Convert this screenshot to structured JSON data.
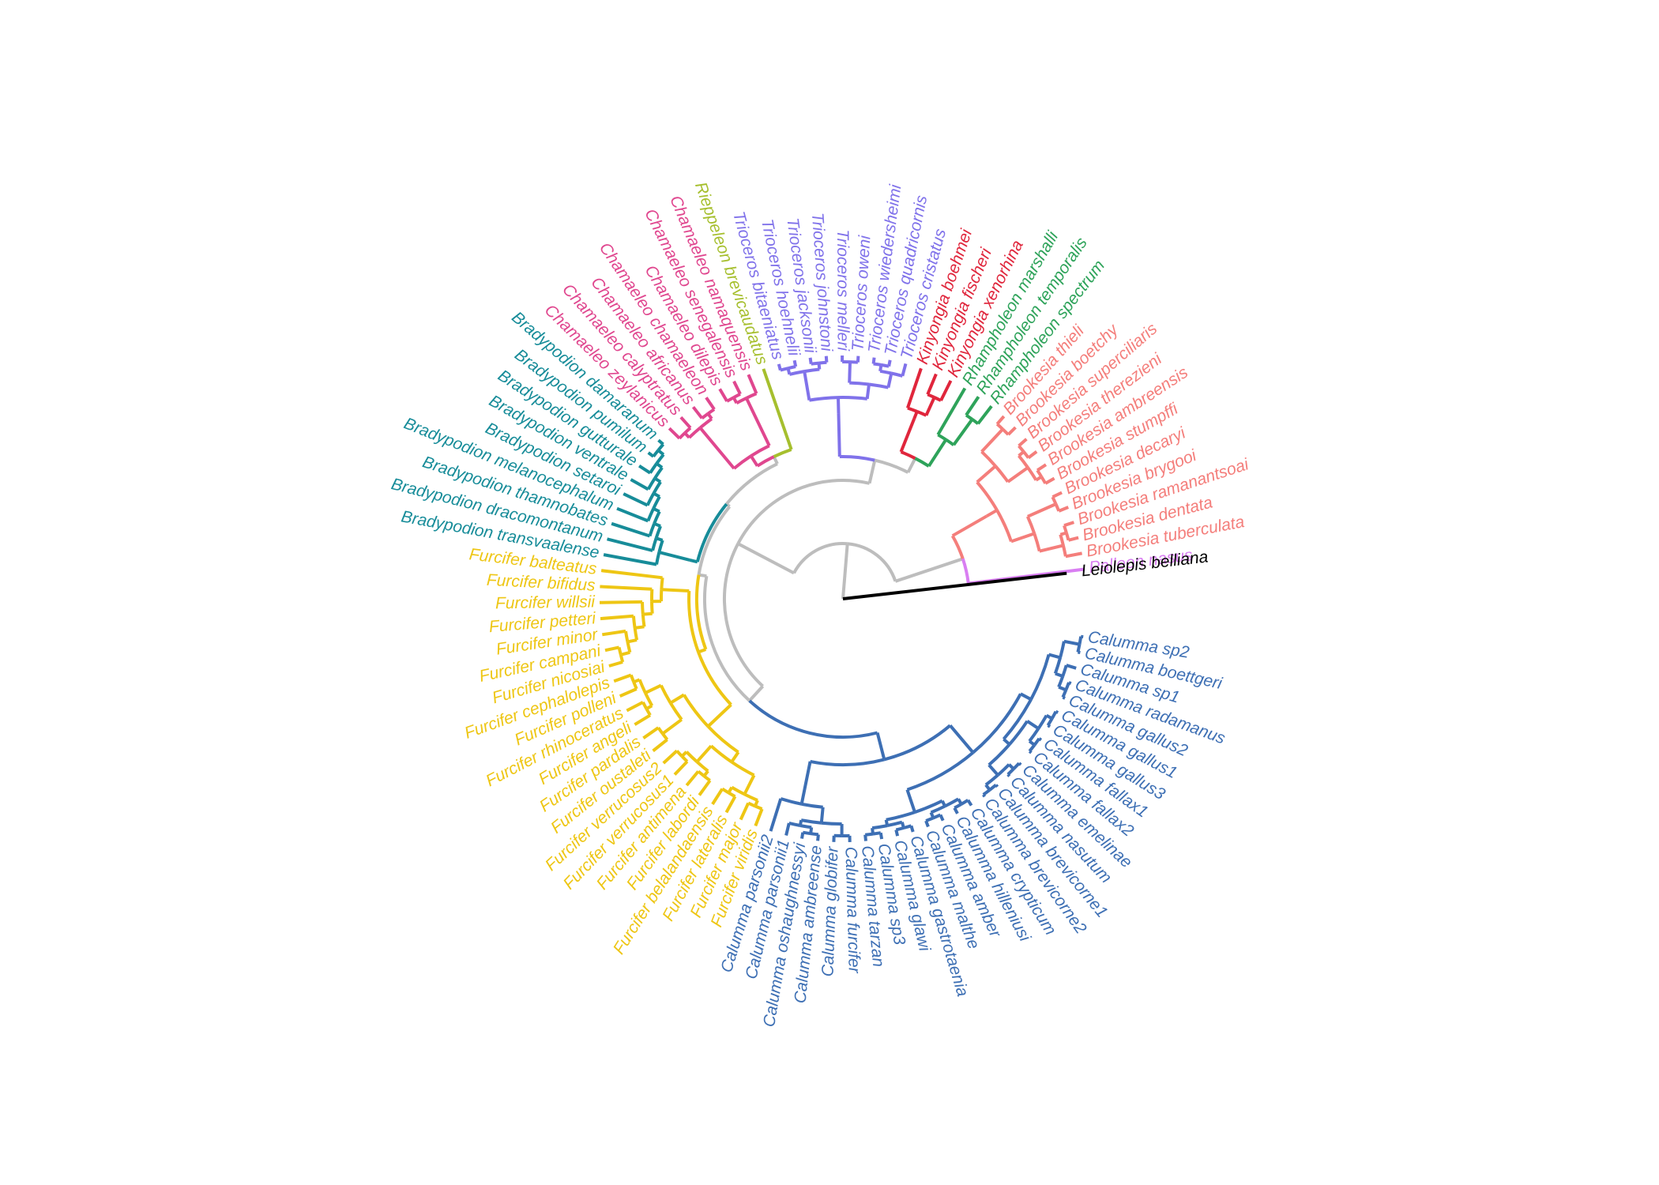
{
  "outgroup": {
    "label": "Leiolepis belliana",
    "color": "#000000"
  },
  "backbone_color": "#bdbdbd",
  "clades": [
    {
      "name": "Palleon",
      "color": "#d97ef2",
      "taxa": [
        "Palleon nasus"
      ]
    },
    {
      "name": "Brookesia",
      "color": "#f47e7b",
      "taxa": [
        "Brookesia tuberculata",
        "Brookesia dentata",
        "Brookesia ramanantsoai",
        "Brookesia brygooi",
        "Brookesia decaryi",
        "Brookesia stumpffi",
        "Brookesia ambreensis",
        "Brookesia therezieni",
        "Brookesia superciliaris",
        "Brookesia boetchy",
        "Brookesia thieli"
      ]
    },
    {
      "name": "Rhampholeon",
      "color": "#2ea35a",
      "taxa": [
        "Rhampholeon spectrum",
        "Rhampholeon temporalis",
        "Rhampholeon marshalli"
      ]
    },
    {
      "name": "Kinyongia",
      "color": "#e0263c",
      "taxa": [
        "Kinyongia xenorhina",
        "Kinyongia fischeri",
        "Kinyongia boehmei"
      ]
    },
    {
      "name": "Trioceros",
      "color": "#8072ea",
      "taxa": [
        "Trioceros cristatus",
        "Trioceros quadricornis",
        "Trioceros wiedersheimi",
        "Trioceros oweni",
        "Trioceros melleri",
        "Trioceros johnstoni",
        "Trioceros jacksonii",
        "Trioceros hoehnelii",
        "Trioceros bitaeniatus"
      ]
    },
    {
      "name": "Rieppeleon",
      "color": "#a6bf2e",
      "taxa": [
        "Rieppeleon brevicaudatus"
      ]
    },
    {
      "name": "Chamaeleo",
      "color": "#e0478f",
      "taxa": [
        "Chamaeleo namaquensis",
        "Chamaeleo senegalensis",
        "Chamaeleo dilepis",
        "Chamaeleo chamaeleon",
        "Chamaeleo africanus",
        "Chamaeleo calyptratus",
        "Chamaeleo zeylanicus"
      ]
    },
    {
      "name": "Bradypodion",
      "color": "#178c99",
      "taxa": [
        "Bradypodion damaranum",
        "Bradypodion pumilum",
        "Bradypodion gutturale",
        "Bradypodion ventrale",
        "Bradypodion setaroi",
        "Bradypodion melanocephalum",
        "Bradypodion thamnobates",
        "Bradypodion dracomontanum",
        "Bradypodion transvaalense"
      ]
    },
    {
      "name": "Furcifer",
      "color": "#eec614",
      "taxa": [
        "Furcifer balteatus",
        "Furcifer bifidus",
        "Furcifer willsii",
        "Furcifer petteri",
        "Furcifer minor",
        "Furcifer campani",
        "Furcifer nicosiai",
        "Furcifer cephalolepis",
        "Furcifer polleni",
        "Furcifer rhinoceratus",
        "Furcifer angeli",
        "Furcifer pardalis",
        "Furcifer oustaleti",
        "Furcifer verrucosus2",
        "Furcifer verrucosus1",
        "Furcifer antimena",
        "Furcifer labordi",
        "Furcifer belalandaensis",
        "Furcifer lateralis",
        "Furcifer major",
        "Furcifer viridis"
      ]
    },
    {
      "name": "Calumma",
      "color": "#3d6fb4",
      "taxa": [
        "Calumma parsonii2",
        "Calumma parsonii1",
        "Calumma oshaughnessyi",
        "Calumma ambreense",
        "Calumma globifer",
        "Calumma furcifer",
        "Calumma tarzan",
        "Calumma sp3",
        "Calumma glawi",
        "Calumma gastrotaenia",
        "Calumma malthe",
        "Calumma amber",
        "Calumma hilleniusi",
        "Calumma crypticum",
        "Calumma brevicorne2",
        "Calumma brevicorne1",
        "Calumma nasutum",
        "Calumma emelinae",
        "Calumma fallax2",
        "Calumma fallax1",
        "Calumma gallus3",
        "Calumma gallus1",
        "Calumma gallus2",
        "Calumma radamanus",
        "Calumma sp1",
        "Calumma boettgeri",
        "Calumma sp2"
      ]
    }
  ]
}
